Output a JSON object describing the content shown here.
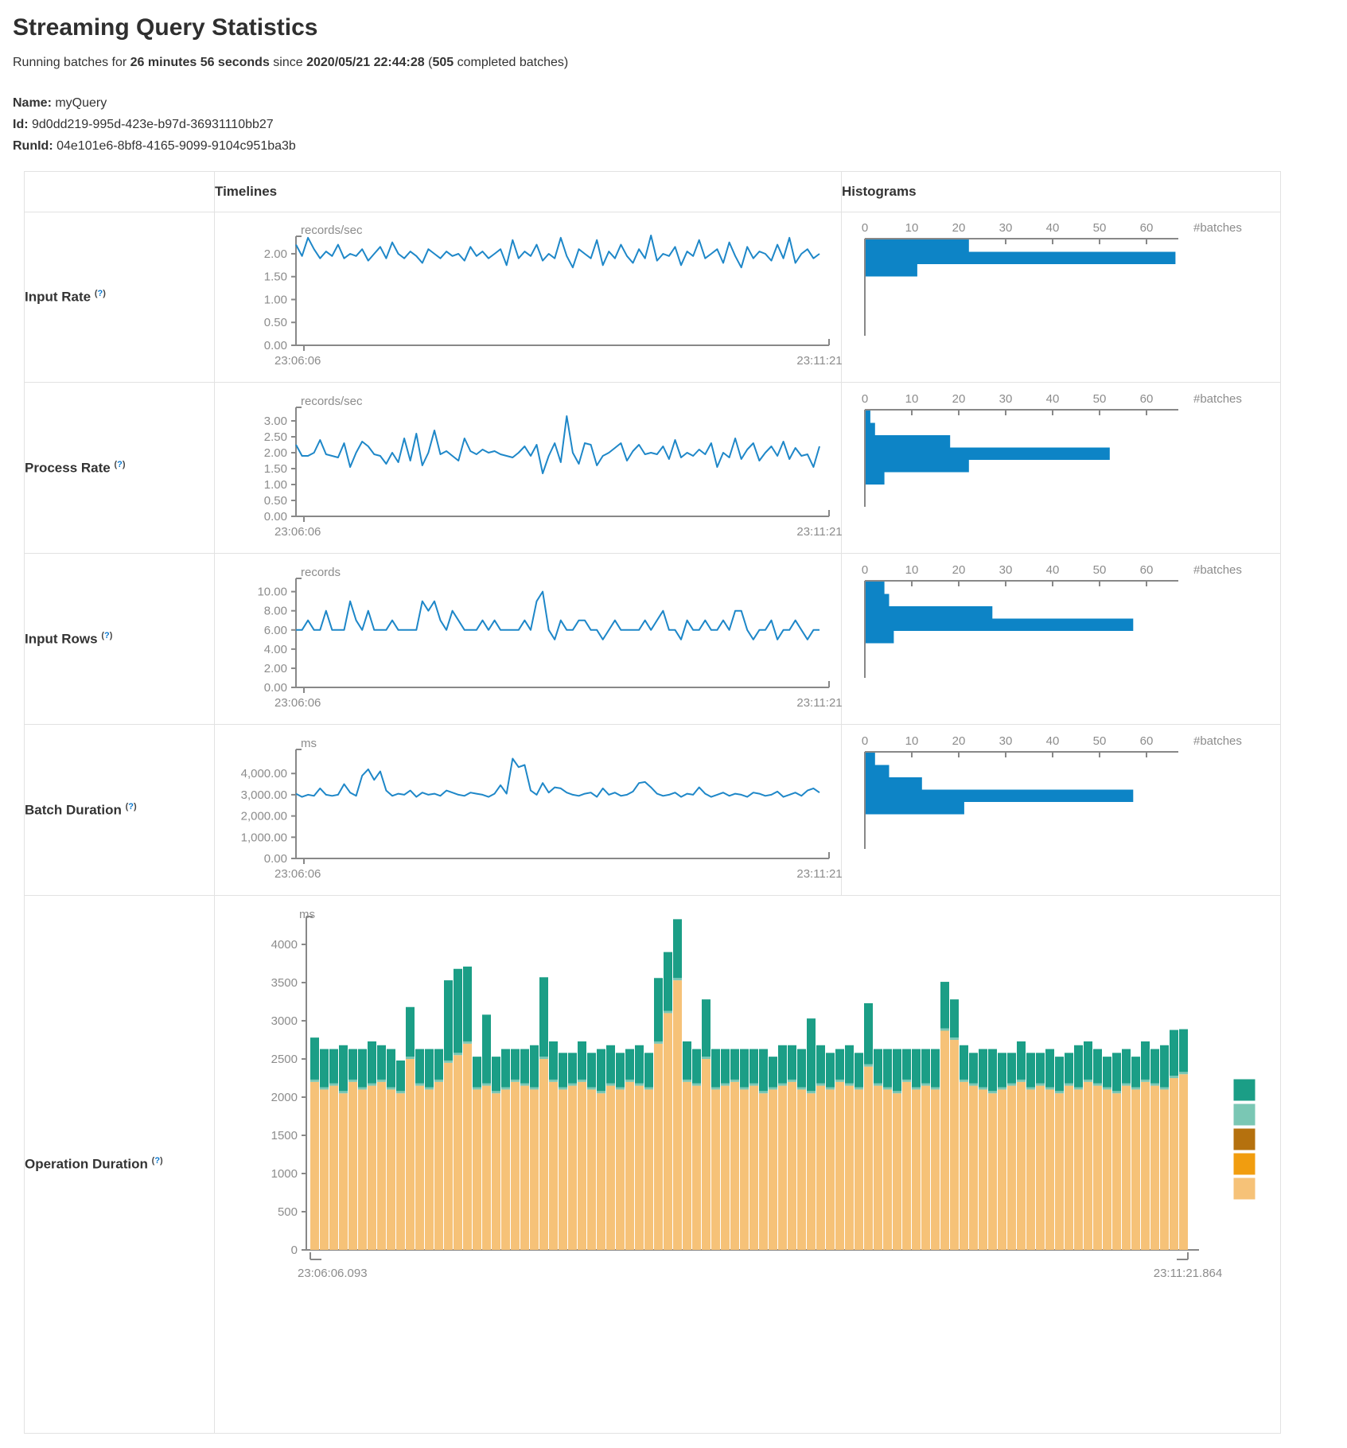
{
  "page": {
    "title": "Streaming Query Statistics",
    "running_prefix": "Running batches for ",
    "duration": "26 minutes 56 seconds",
    "since_text": " since ",
    "start_time": "2020/05/21 22:44:28",
    "paren_open": " (",
    "completed_count": "505",
    "completed_suffix": " completed batches)",
    "name_label": "Name:",
    "name_value": " myQuery",
    "id_label": "Id:",
    "id_value": " 9d0dd219-995d-423e-b97d-36931110bb27",
    "runid_label": "RunId:",
    "runid_value": " 04e101e6-8bf8-4165-9099-9104c951ba3b"
  },
  "table": {
    "headers": {
      "timelines": "Timelines",
      "histograms": "Histograms"
    },
    "hint_open": "(",
    "hint_mark": "?",
    "hint_close": ")",
    "rows": [
      {
        "label": "Input Rate"
      },
      {
        "label": "Process Rate"
      },
      {
        "label": "Input Rows"
      },
      {
        "label": "Batch Duration"
      },
      {
        "label": "Operation Duration"
      }
    ]
  },
  "colors": {
    "line_blue": "#1e87c8",
    "histogram_bar": "#0d84c6",
    "axis_gray": "#888888",
    "text_gray": "#8c8c8c",
    "teal": "#1b9e86",
    "light_teal": "#7ac7b4",
    "brown": "#b5710e",
    "orange": "#f19d0f",
    "tan": "#f6c278"
  },
  "chart_data": [
    {
      "row": "Input Rate",
      "timeline": {
        "type": "line",
        "unit": "records/sec",
        "color": "#1e87c8",
        "x_start": "23:06:06",
        "x_end": "23:11:21",
        "ytick_labels": [
          "2.00",
          "1.50",
          "1.00",
          "0.50",
          "0.00"
        ],
        "ytick_values": [
          2,
          1.5,
          1,
          0.5,
          0
        ],
        "y_top": 2.26,
        "values": [
          2.2,
          1.95,
          2.35,
          2.1,
          1.9,
          2.05,
          1.95,
          2.2,
          1.9,
          2.0,
          1.95,
          2.1,
          1.85,
          2.0,
          2.15,
          1.9,
          2.25,
          2.0,
          1.9,
          2.05,
          1.95,
          1.8,
          2.1,
          2.0,
          1.9,
          2.05,
          1.95,
          2.0,
          1.85,
          2.15,
          1.95,
          2.05,
          1.9,
          2.0,
          2.1,
          1.75,
          2.3,
          1.9,
          2.05,
          1.95,
          2.2,
          1.85,
          2.0,
          1.9,
          2.35,
          1.95,
          1.7,
          2.1,
          2.0,
          1.9,
          2.3,
          1.75,
          2.05,
          1.9,
          2.2,
          1.95,
          1.8,
          2.1,
          1.9,
          2.4,
          1.85,
          2.0,
          1.95,
          2.15,
          1.75,
          2.05,
          1.95,
          2.3,
          1.9,
          2.0,
          2.1,
          1.8,
          2.25,
          1.95,
          1.7,
          2.15,
          1.9,
          2.05,
          2.0,
          1.85,
          2.2,
          1.9,
          2.35,
          1.8,
          2.0,
          2.1,
          1.9,
          2.0
        ]
      },
      "histogram": {
        "type": "bar",
        "orientation": "horizontal",
        "xlabel": "#batches",
        "xticks": [
          0,
          10,
          20,
          30,
          40,
          50,
          60
        ],
        "values": [
          22,
          66,
          11
        ]
      }
    },
    {
      "row": "Process Rate",
      "timeline": {
        "type": "line",
        "unit": "records/sec",
        "color": "#1e87c8",
        "x_start": "23:06:06",
        "x_end": "23:11:21",
        "ytick_labels": [
          "3.00",
          "2.50",
          "2.00",
          "1.50",
          "1.00",
          "0.50",
          "0.00"
        ],
        "ytick_values": [
          3,
          2.5,
          2,
          1.5,
          1,
          0.5,
          0
        ],
        "y_top": 3.25,
        "values": [
          2.25,
          1.9,
          1.9,
          2.0,
          2.4,
          1.95,
          1.9,
          1.85,
          2.3,
          1.55,
          2.0,
          2.35,
          2.2,
          1.95,
          1.9,
          1.65,
          2.0,
          1.7,
          2.45,
          1.75,
          2.6,
          1.6,
          2.0,
          2.7,
          1.95,
          2.05,
          1.9,
          1.75,
          2.45,
          2.05,
          1.95,
          2.1,
          2.0,
          2.05,
          1.95,
          1.9,
          1.85,
          2.0,
          2.2,
          1.9,
          2.25,
          1.35,
          1.9,
          2.3,
          1.7,
          3.15,
          2.0,
          1.65,
          2.3,
          2.25,
          1.6,
          1.9,
          2.0,
          2.15,
          2.3,
          1.75,
          2.05,
          2.25,
          1.95,
          2.0,
          1.95,
          2.2,
          1.8,
          2.4,
          1.85,
          2.0,
          1.9,
          2.1,
          1.95,
          2.3,
          1.55,
          2.0,
          1.85,
          2.45,
          1.8,
          2.1,
          2.3,
          1.75,
          2.0,
          2.2,
          1.9,
          2.35,
          1.8,
          2.15,
          1.9,
          1.95,
          1.55,
          2.2
        ]
      },
      "histogram": {
        "type": "bar",
        "orientation": "horizontal",
        "xlabel": "#batches",
        "xticks": [
          0,
          10,
          20,
          30,
          40,
          50,
          60
        ],
        "values": [
          1,
          2,
          18,
          52,
          22,
          4
        ]
      }
    },
    {
      "row": "Input Rows",
      "timeline": {
        "type": "line",
        "unit": "records",
        "color": "#1e87c8",
        "x_start": "23:06:06",
        "x_end": "23:11:21",
        "ytick_labels": [
          "10.00",
          "8.00",
          "6.00",
          "4.00",
          "2.00",
          "0.00"
        ],
        "ytick_values": [
          10,
          8,
          6,
          4,
          2,
          0
        ],
        "y_top": 10.8,
        "values": [
          6,
          6,
          7,
          6,
          6,
          8,
          6,
          6,
          6,
          9,
          7,
          6,
          8,
          6,
          6,
          6,
          7,
          6,
          6,
          6,
          6,
          9,
          8,
          9,
          7,
          6,
          8,
          7,
          6,
          6,
          6,
          7,
          6,
          7,
          6,
          6,
          6,
          6,
          7,
          6,
          9,
          10,
          6,
          5,
          7,
          6,
          6,
          7,
          7,
          6,
          6,
          5,
          6,
          7,
          6,
          6,
          6,
          6,
          7,
          6,
          7,
          8,
          6,
          6,
          5,
          7,
          6,
          6,
          7,
          6,
          6,
          7,
          6,
          8,
          8,
          6,
          5,
          6,
          6,
          7,
          5,
          6,
          6,
          7,
          6,
          5,
          6,
          6
        ]
      },
      "histogram": {
        "type": "bar",
        "orientation": "horizontal",
        "xlabel": "#batches",
        "xticks": [
          0,
          10,
          20,
          30,
          40,
          50,
          60
        ],
        "values": [
          4,
          5,
          27,
          57,
          6
        ]
      }
    },
    {
      "row": "Batch Duration",
      "timeline": {
        "type": "line",
        "unit": "ms",
        "color": "#1e87c8",
        "x_start": "23:06:06",
        "x_end": "23:11:21",
        "ytick_labels": [
          "4,000.00",
          "3,000.00",
          "2,000.00",
          "1,000.00",
          "0.00"
        ],
        "ytick_values": [
          4000,
          3000,
          2000,
          1000,
          0
        ],
        "y_top": 4870,
        "values": [
          3050,
          2900,
          3000,
          2950,
          3300,
          3000,
          2950,
          3000,
          3500,
          3100,
          2950,
          3900,
          4200,
          3700,
          4100,
          3200,
          2950,
          3050,
          3000,
          3200,
          2900,
          3100,
          3000,
          3050,
          2950,
          3200,
          3100,
          3000,
          2950,
          3100,
          3050,
          3000,
          2900,
          3050,
          3450,
          3050,
          4700,
          4300,
          4400,
          3200,
          3000,
          3550,
          3100,
          3350,
          3300,
          3100,
          3000,
          2950,
          3050,
          3100,
          2900,
          3300,
          3000,
          3100,
          2950,
          3000,
          3150,
          3550,
          3600,
          3350,
          3050,
          2950,
          3000,
          3100,
          2900,
          3050,
          3000,
          3350,
          3050,
          2900,
          3000,
          3100,
          2950,
          3050,
          3000,
          2900,
          3100,
          3050,
          2950,
          3000,
          3150,
          2900,
          3000,
          3100,
          2950,
          3200,
          3300,
          3100
        ]
      },
      "histogram": {
        "type": "bar",
        "orientation": "horizontal",
        "xlabel": "#batches",
        "xticks": [
          0,
          10,
          20,
          30,
          40,
          50,
          60
        ],
        "values": [
          2,
          5,
          12,
          57,
          21
        ]
      }
    },
    {
      "row": "Operation Duration",
      "timeline": {
        "type": "stacked-bar",
        "unit": "ms",
        "x_start": "23:06:06.093",
        "x_end": "23:11:21.864",
        "ytick_labels": [
          "4000",
          "3500",
          "3000",
          "2500",
          "2000",
          "1500",
          "1000",
          "500",
          "0"
        ],
        "ytick_values": [
          4000,
          3500,
          3000,
          2500,
          2000,
          1500,
          1000,
          500,
          0
        ],
        "y_top": 4365,
        "legend_colors": [
          "#1b9e86",
          "#7ac7b4",
          "#b5710e",
          "#f19d0f",
          "#f6c278"
        ],
        "series": [
          {
            "name": "bottom-tan",
            "color": "#f6c278",
            "values": [
              2200,
              2100,
              2150,
              2050,
              2200,
              2100,
              2150,
              2200,
              2100,
              2050,
              2500,
              2150,
              2100,
              2200,
              2450,
              2550,
              2700,
              2100,
              2150,
              2050,
              2100,
              2200,
              2150,
              2100,
              2500,
              2200,
              2100,
              2150,
              2200,
              2100,
              2050,
              2150,
              2100,
              2200,
              2150,
              2100,
              2700,
              3100,
              3530,
              2200,
              2150,
              2500,
              2100,
              2150,
              2200,
              2100,
              2150,
              2050,
              2100,
              2150,
              2200,
              2100,
              2050,
              2150,
              2100,
              2200,
              2150,
              2100,
              2400,
              2150,
              2100,
              2050,
              2200,
              2100,
              2150,
              2100,
              2870,
              2750,
              2200,
              2150,
              2100,
              2050,
              2100,
              2150,
              2200,
              2100,
              2150,
              2100,
              2050,
              2150,
              2100,
              2200,
              2150,
              2100,
              2050,
              2150,
              2100,
              2200,
              2150,
              2100,
              2250,
              2300
            ]
          },
          {
            "name": "middle-light-teal",
            "color": "#7ac7b4",
            "constant": 30
          },
          {
            "name": "top-teal",
            "color": "#1b9e86",
            "values": [
              550,
              500,
              450,
              600,
              400,
              500,
              550,
              450,
              500,
              400,
              650,
              450,
              500,
              400,
              1050,
              1100,
              980,
              400,
              900,
              450,
              500,
              400,
              450,
              550,
              1040,
              500,
              450,
              400,
              500,
              450,
              550,
              500,
              450,
              400,
              500,
              450,
              830,
              770,
              770,
              500,
              450,
              750,
              500,
              450,
              400,
              500,
              450,
              550,
              400,
              500,
              450,
              500,
              950,
              500,
              450,
              400,
              500,
              450,
              800,
              450,
              500,
              550,
              400,
              500,
              450,
              500,
              610,
              500,
              450,
              400,
              500,
              550,
              450,
              400,
              500,
              450,
              400,
              500,
              450,
              400,
              550,
              500,
              450,
              400,
              500,
              450,
              400,
              500,
              450,
              550,
              600,
              560
            ]
          }
        ]
      }
    }
  ]
}
